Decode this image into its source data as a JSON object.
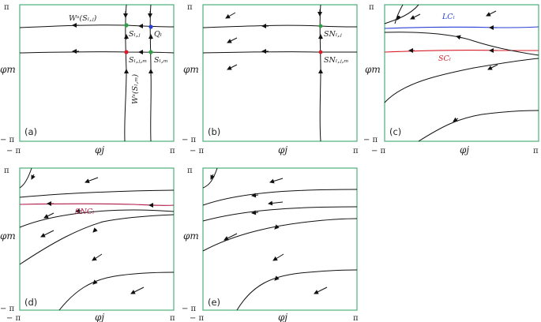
{
  "colors": {
    "frame": "#4caf7a",
    "limit_cycle": "#2a3fd6",
    "saddle_cycle": "#d81e2a",
    "saddle_node_cycle": "#b01a47",
    "node_green": "#2ea043",
    "node_red": "#d81e2a",
    "node_blue": "#2a3fd6"
  },
  "ticks": {
    "pi": "π",
    "minus_pi": "− π"
  },
  "axes": {
    "x": "φj",
    "y": "φm"
  },
  "panels": [
    {
      "label": "(a)"
    },
    {
      "label": "(b)"
    },
    {
      "label": "(c)"
    },
    {
      "label": "(d)"
    },
    {
      "label": "(e)"
    }
  ],
  "labels": {
    "wu": "Wᵘ(Sₗ,ⱼ)",
    "s_lj": "Sₗ,ⱼ",
    "q_l": "Qₗ",
    "s_ljm": "Sₗ,ⱼ,ₘ",
    "s_lm": "Sₗ,ₘ",
    "ws": "Wˢ(Sₗ,ₘ)",
    "sn_lj": "SNₗ,ⱼ",
    "sn_ljm": "SNₗ,ⱼ,ₘ",
    "lc": "LCₗ",
    "sc": "SCₗ",
    "snc": "SNCₗ"
  }
}
